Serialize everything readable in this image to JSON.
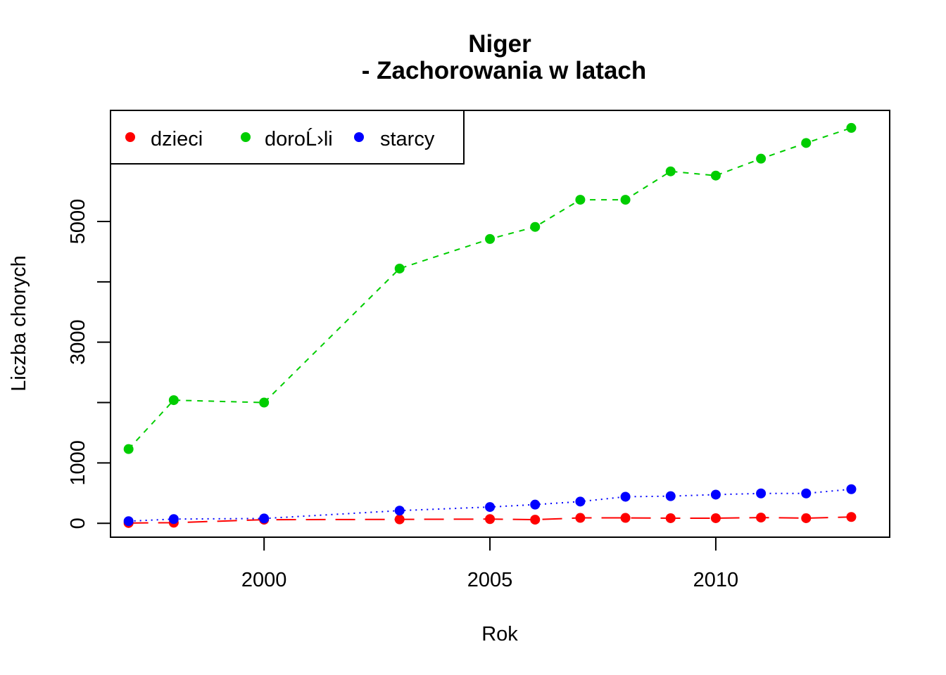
{
  "chart_data": {
    "type": "line",
    "title": "Niger",
    "subtitle": "- Zachorowania w latach",
    "xlabel": "Rok",
    "ylabel": "Liczba chorych",
    "xlim": [
      1996.6,
      2013.85
    ],
    "ylim": [
      -230,
      6840
    ],
    "x_ticks": [
      2000,
      2005,
      2010
    ],
    "y_ticks": [
      0,
      1000,
      3000,
      5000
    ],
    "y_minor_ticks": [
      2000,
      4000
    ],
    "grid": false,
    "legend_position": "top-left",
    "x": [
      1997,
      1998,
      2000,
      2003,
      2005,
      2006,
      2007,
      2008,
      2009,
      2010,
      2011,
      2012,
      2013
    ],
    "series": [
      {
        "name": "dzieci",
        "color": "#ff0000",
        "line_style": "longdash",
        "values": [
          5,
          10,
          60,
          65,
          70,
          60,
          90,
          90,
          85,
          85,
          95,
          85,
          105
        ]
      },
      {
        "name": "doroĹ›li",
        "color": "#00cd00",
        "line_style": "dashed",
        "values": [
          1230,
          2040,
          2000,
          4220,
          4710,
          4910,
          5360,
          5360,
          5830,
          5760,
          6040,
          6300,
          6550
        ]
      },
      {
        "name": "starcy",
        "color": "#0000ff",
        "line_style": "dotted",
        "values": [
          35,
          70,
          80,
          210,
          270,
          310,
          360,
          440,
          450,
          475,
          495,
          495,
          565
        ]
      }
    ]
  }
}
